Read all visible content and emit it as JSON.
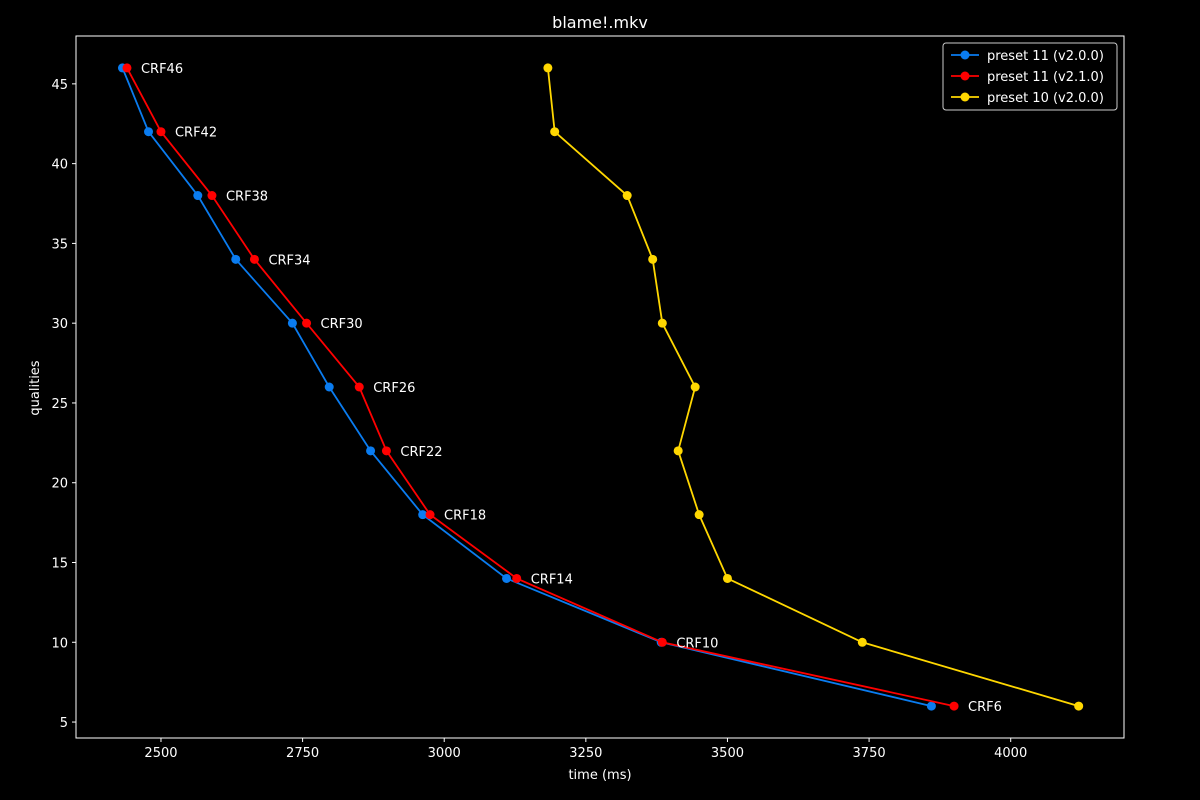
{
  "chart_data": {
    "type": "line",
    "title": "blame!.mkv",
    "xlabel": "time (ms)",
    "ylabel": "qualities",
    "xlim": [
      2350,
      4200
    ],
    "ylim": [
      4,
      48
    ],
    "xticks": [
      2500,
      2750,
      3000,
      3250,
      3500,
      3750,
      4000
    ],
    "yticks": [
      5,
      10,
      15,
      20,
      25,
      30,
      35,
      40,
      45
    ],
    "grid": false,
    "legend_position": "top-right",
    "series": [
      {
        "name": "preset 11 (v2.0.0)",
        "color": "#0a7cf0",
        "x": [
          2432,
          2478,
          2565,
          2632,
          2732,
          2797,
          2870,
          2962,
          3110,
          3383,
          3860
        ],
        "y": [
          46,
          42,
          38,
          34,
          30,
          26,
          22,
          18,
          14,
          10,
          6
        ]
      },
      {
        "name": "preset 11 (v2.1.0)",
        "color": "#ff0000",
        "x": [
          2440,
          2500,
          2590,
          2665,
          2757,
          2850,
          2898,
          2975,
          3128,
          3385,
          3900
        ],
        "y": [
          46,
          42,
          38,
          34,
          30,
          26,
          22,
          18,
          14,
          10,
          6
        ]
      },
      {
        "name": "preset 10 (v2.0.0)",
        "color": "#ffd700",
        "x": [
          3183,
          3195,
          3323,
          3368,
          3385,
          3443,
          3413,
          3450,
          3500,
          3738,
          4120
        ],
        "y": [
          46,
          42,
          38,
          34,
          30,
          26,
          22,
          18,
          14,
          10,
          6
        ]
      }
    ],
    "annotations": [
      {
        "text": "CRF46",
        "x": 2440,
        "y": 46
      },
      {
        "text": "CRF42",
        "x": 2500,
        "y": 42
      },
      {
        "text": "CRF38",
        "x": 2590,
        "y": 38
      },
      {
        "text": "CRF34",
        "x": 2665,
        "y": 34
      },
      {
        "text": "CRF30",
        "x": 2757,
        "y": 30
      },
      {
        "text": "CRF26",
        "x": 2850,
        "y": 26
      },
      {
        "text": "CRF22",
        "x": 2898,
        "y": 22
      },
      {
        "text": "CRF18",
        "x": 2975,
        "y": 18
      },
      {
        "text": "CRF14",
        "x": 3128,
        "y": 14
      },
      {
        "text": "CRF10",
        "x": 3385,
        "y": 10
      },
      {
        "text": "CRF6",
        "x": 3900,
        "y": 6
      }
    ]
  }
}
